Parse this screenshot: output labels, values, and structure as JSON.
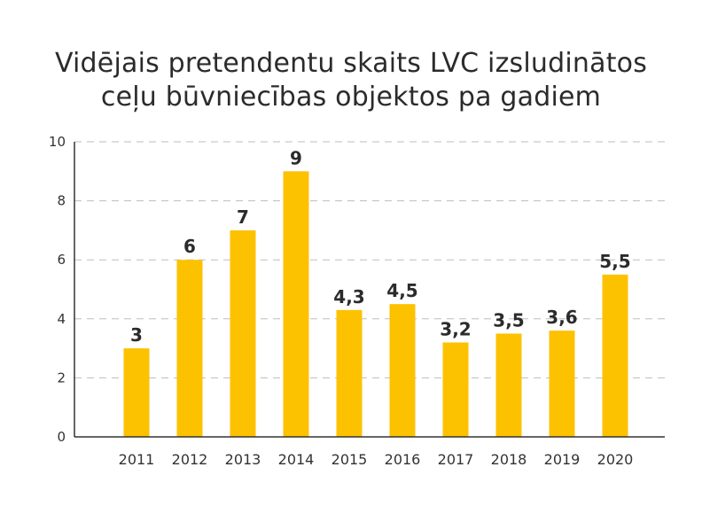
{
  "chart_data": {
    "type": "bar",
    "title_lines": [
      "Vidējais pretendentu skaits LVC izsludinātos",
      "ceļu būvniecības objektos pa gadiem"
    ],
    "categories": [
      "2011",
      "2012",
      "2013",
      "2014",
      "2015",
      "2016",
      "2017",
      "2018",
      "2019",
      "2020"
    ],
    "values": [
      3,
      6,
      7,
      9,
      4.3,
      4.5,
      3.2,
      3.5,
      3.6,
      5.5
    ],
    "data_labels": [
      "3",
      "6",
      "7",
      "9",
      "4,3",
      "4,5",
      "3,2",
      "3,5",
      "3,6",
      "5,5"
    ],
    "yticks": [
      "0",
      "2",
      "4",
      "6",
      "8",
      "10"
    ],
    "ylim": [
      0,
      10
    ],
    "xlabel": "",
    "ylabel": "",
    "grid": "horizontal dashed",
    "bar_color": "#FCC200",
    "grid_color": "#BDBDBD",
    "axis_color": "#333333"
  }
}
